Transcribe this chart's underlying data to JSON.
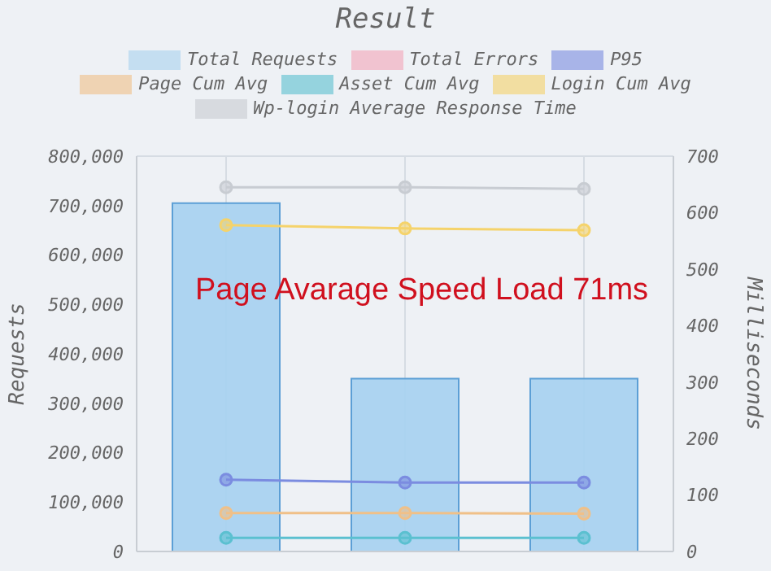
{
  "chart_data": {
    "type": "bar",
    "title": "Result",
    "categories": [
      null,
      null,
      null
    ],
    "series": [
      {
        "name": "Total Requests",
        "color": "#a9d2f0",
        "values": [
          705000,
          350000,
          350000
        ]
      },
      {
        "name": "Total Errors",
        "type": "line",
        "axis": "y2",
        "color": "#f4a6b8",
        "values": [
          null,
          null,
          null
        ]
      },
      {
        "name": "P95",
        "type": "line",
        "axis": "y2",
        "color": "#7b8ce0",
        "values": [
          127,
          122,
          122
        ]
      },
      {
        "name": "Page Cum Avg",
        "type": "line",
        "axis": "y2",
        "color": "#f0c088",
        "values": [
          68,
          68,
          67
        ]
      },
      {
        "name": "Asset Cum Avg",
        "type": "line",
        "axis": "y2",
        "color": "#5bc0d0",
        "values": [
          24,
          24,
          24
        ]
      },
      {
        "name": "Login Cum Avg",
        "type": "line",
        "axis": "y2",
        "color": "#f5d36b",
        "values": [
          578,
          572,
          569
        ]
      },
      {
        "name": "Wp-login Average Response Time",
        "type": "line",
        "axis": "y2",
        "color": "#c8ccd2",
        "values": [
          645,
          645,
          642
        ]
      }
    ],
    "ylabel": "Requests",
    "y2label": "Milliseconds",
    "ylim": [
      0,
      800000
    ],
    "yticks": [
      {
        "value": 0,
        "label": "0"
      },
      {
        "value": 100000,
        "label": "100,000"
      },
      {
        "value": 200000,
        "label": "200,000"
      },
      {
        "value": 300000,
        "label": "300,000"
      },
      {
        "value": 400000,
        "label": "400,000"
      },
      {
        "value": 500000,
        "label": "500,000"
      },
      {
        "value": 600000,
        "label": "600,000"
      },
      {
        "value": 700000,
        "label": "700,000"
      },
      {
        "value": 800000,
        "label": "800,000"
      }
    ],
    "y2lim": [
      0,
      700
    ],
    "y2ticks": [
      0,
      100,
      200,
      300,
      400,
      500,
      600,
      700
    ],
    "annotations": [
      "Page Avarage Speed Load 71ms"
    ],
    "grid": true,
    "legend": "top",
    "marker": "circle",
    "line_style": "solid"
  }
}
